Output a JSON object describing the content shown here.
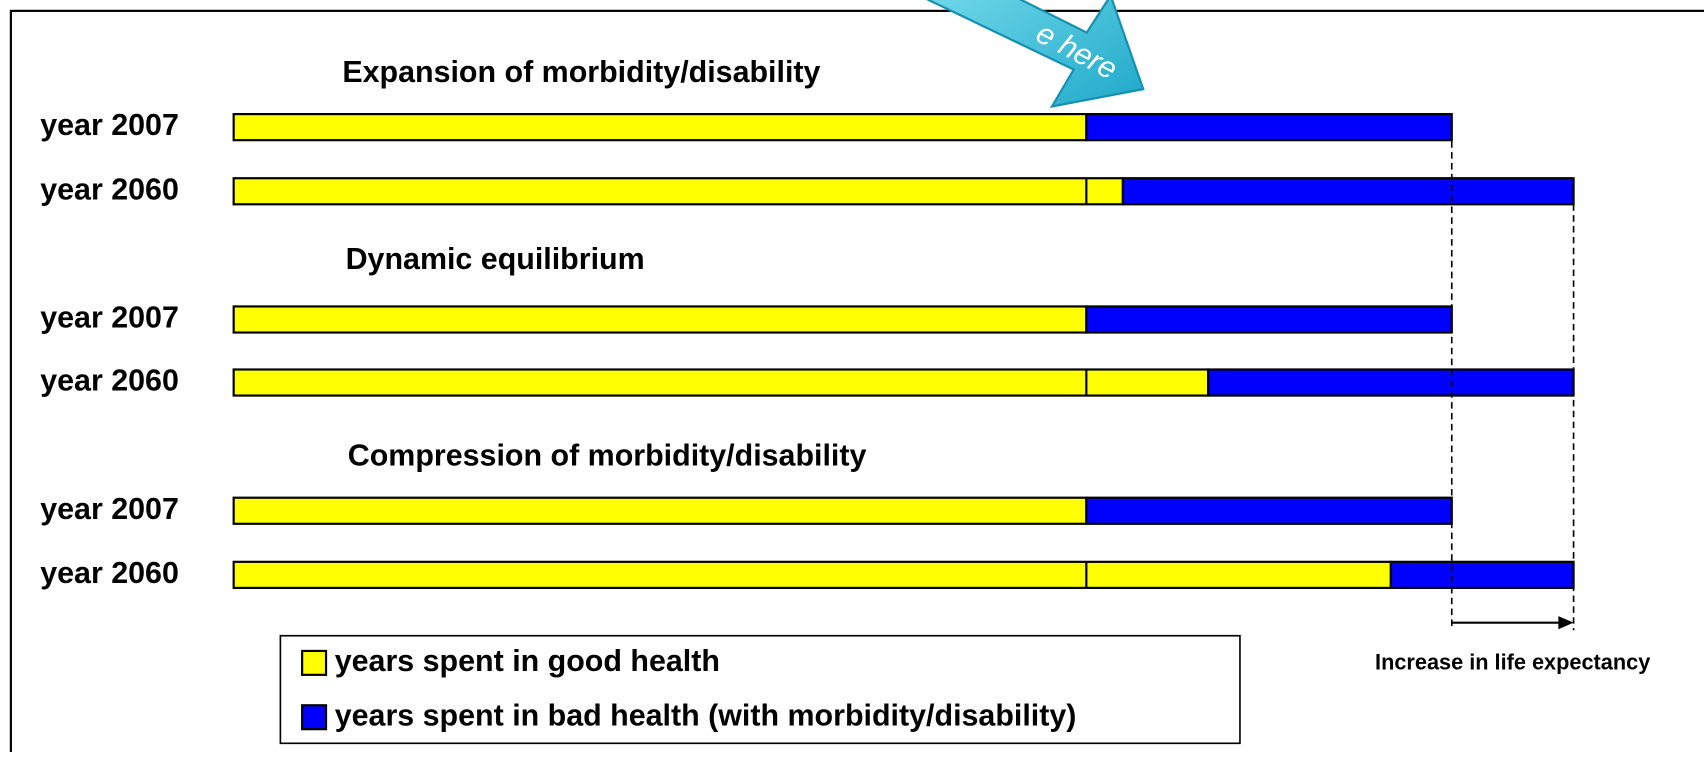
{
  "chart_data": {
    "type": "bar",
    "orientation": "horizontal",
    "stacked": true,
    "xlim": [
      0,
      110
    ],
    "series": [
      {
        "name": "years spent in good health",
        "color": "#ffff00"
      },
      {
        "name": "years spent in bad health (with morbidity/disability)",
        "color": "#0000ff"
      }
    ],
    "groups": [
      {
        "title": "Expansion of morbidity/disability",
        "rows": [
          {
            "label": "year 2007",
            "values": [
              70,
              30
            ]
          },
          {
            "label": "year 2060",
            "values": [
              73,
              37
            ]
          }
        ]
      },
      {
        "title": "Dynamic equilibrium",
        "rows": [
          {
            "label": "year 2007",
            "values": [
              70,
              30
            ]
          },
          {
            "label": "year 2060",
            "values": [
              80,
              30
            ]
          }
        ]
      },
      {
        "title": "Compression of morbidity/disability",
        "rows": [
          {
            "label": "year 2007",
            "values": [
              70,
              30
            ]
          },
          {
            "label": "year 2060",
            "values": [
              95,
              15
            ]
          }
        ]
      }
    ],
    "annotation": "Increase in life expectancy",
    "callout": "e here"
  }
}
